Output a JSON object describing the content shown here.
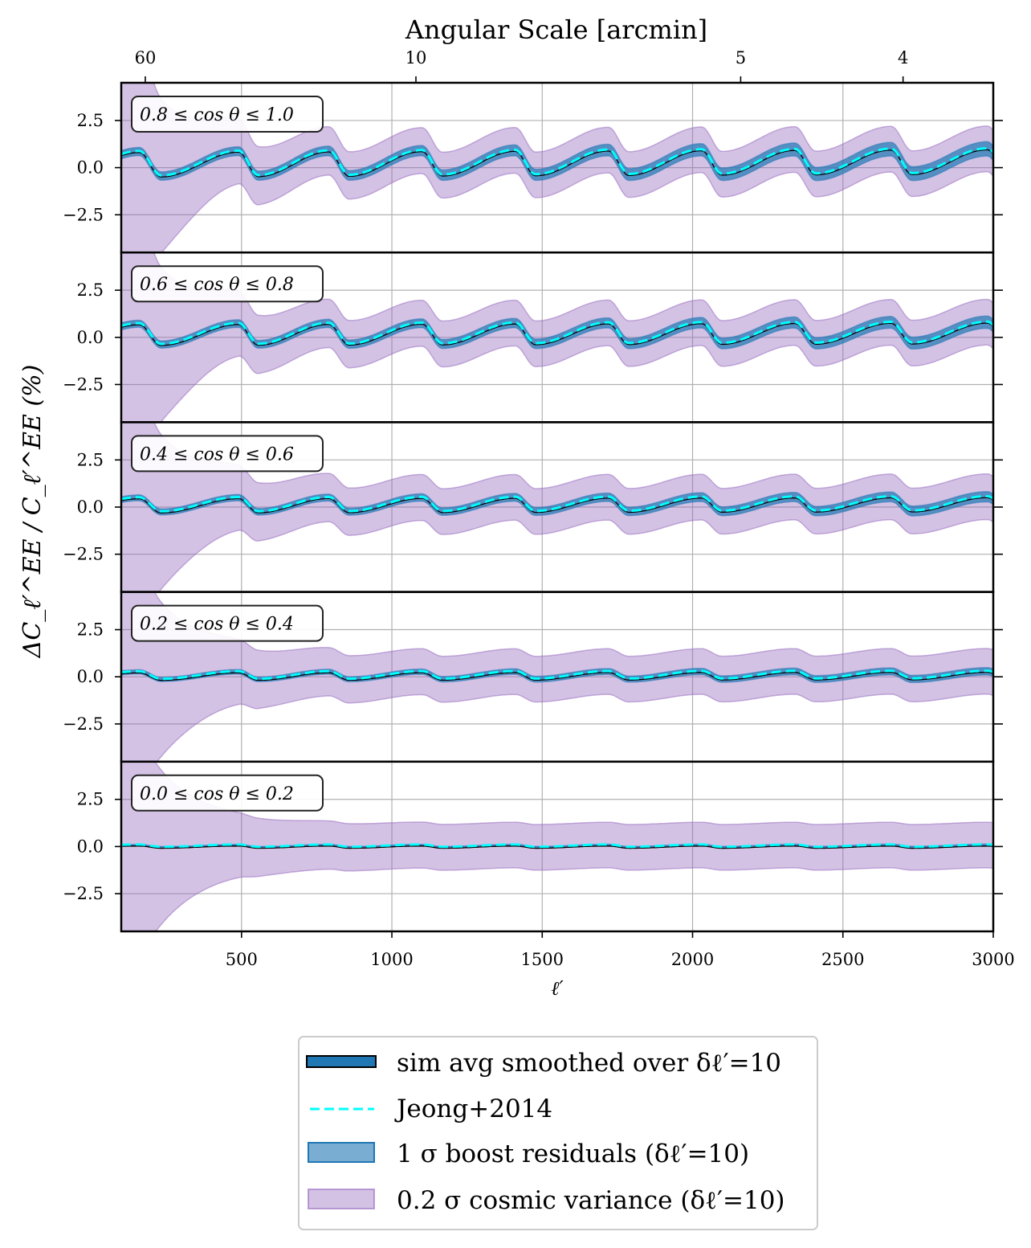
{
  "chart_data": {
    "type": "line",
    "top_axis_label": "Angular Scale [arcmin]",
    "top_ticks": [
      {
        "ell": 180,
        "label": "60"
      },
      {
        "ell": 1080,
        "label": "10"
      },
      {
        "ell": 2160,
        "label": "5"
      },
      {
        "ell": 2700,
        "label": "4"
      }
    ],
    "xlabel": "ℓ′",
    "ylabel": "ΔC_ℓ′^EE / C_ℓ′^EE (%)",
    "xlim": [
      100,
      3000
    ],
    "ylim": [
      -4.5,
      4.5
    ],
    "xticks": [
      500,
      1000,
      1500,
      2000,
      2500,
      3000
    ],
    "xtick_labels": [
      "500",
      "1000",
      "1500",
      "2000",
      "2500",
      "3000"
    ],
    "yticks": [
      2.5,
      0.0,
      -2.5
    ],
    "ytick_labels": [
      "2.5",
      "0.0",
      "−2.5"
    ],
    "grid": true,
    "oscillation_peaks_ell": [
      160,
      490,
      790,
      1100,
      1410,
      1720,
      2030,
      2340,
      2660,
      2980
    ],
    "panels": [
      {
        "label": "0.8 ≤ cos θ ≤ 1.0",
        "amplitude": 1.3,
        "trend": 0.05,
        "boost_sigma": 0.35,
        "cv_sigma": 1.1
      },
      {
        "label": "0.6 ≤ cos θ ≤ 0.8",
        "amplitude": 1.1,
        "trend": 0.03,
        "boost_sigma": 0.3,
        "cv_sigma": 1.1
      },
      {
        "label": "0.4 ≤ cos θ ≤ 0.6",
        "amplitude": 0.75,
        "trend": 0.02,
        "boost_sigma": 0.25,
        "cv_sigma": 1.1
      },
      {
        "label": "0.2 ≤ cos θ ≤ 0.4",
        "amplitude": 0.4,
        "trend": 0.01,
        "boost_sigma": 0.18,
        "cv_sigma": 1.1
      },
      {
        "label": "0.0 ≤ cos θ ≤ 0.2",
        "amplitude": 0.12,
        "trend": 0.0,
        "boost_sigma": 0.05,
        "cv_sigma": 1.1
      }
    ],
    "series": [
      {
        "name": "sim avg smoothed over δℓ′=10",
        "color": "#1f77b4",
        "style": "solid-with-outline"
      },
      {
        "name": "Jeong+2014",
        "color": "#00ffff",
        "style": "dashed"
      },
      {
        "name": "1 σ boost residuals (δℓ′=10)",
        "color": "#1f77b4",
        "style": "band"
      },
      {
        "name": "0.2 σ cosmic variance (δℓ′=10)",
        "color": "#9467bd",
        "style": "band"
      }
    ]
  }
}
